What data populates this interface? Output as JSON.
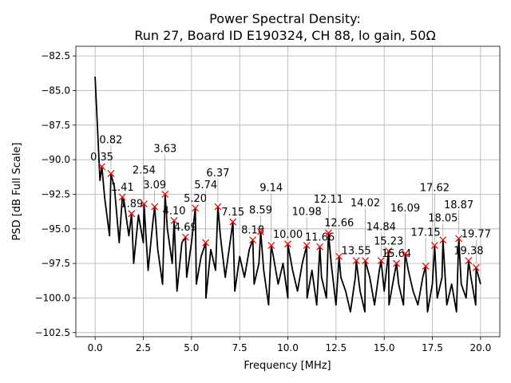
{
  "chart_data": {
    "type": "line",
    "title": "Power Spectral Density:",
    "subtitle": "Run 27, Board ID E190324, CH 88, lo gain, 50Ω",
    "xlabel": "Frequency [MHz]",
    "ylabel": "PSD [dB Full Scale]",
    "xlim": [
      -1,
      21
    ],
    "ylim": [
      -102.8,
      -81.8
    ],
    "xticks": [
      0.0,
      2.5,
      5.0,
      7.5,
      10.0,
      12.5,
      15.0,
      17.5,
      20.0
    ],
    "xtick_labels": [
      "0.0",
      "2.5",
      "5.0",
      "7.5",
      "10.0",
      "12.5",
      "15.0",
      "17.5",
      "20.0"
    ],
    "yticks": [
      -82.5,
      -85.0,
      -87.5,
      -90.0,
      -92.5,
      -95.0,
      -97.5,
      -100.0,
      -102.5
    ],
    "ytick_labels": [
      "−82.5",
      "−85.0",
      "−87.5",
      "−90.0",
      "−92.5",
      "−95.0",
      "−97.5",
      "−100.0",
      "−102.5"
    ],
    "grid": true,
    "line_color": "#000000",
    "marker_color": "#ff0000",
    "trace": {
      "x": [
        0,
        0.25,
        0.5,
        0.75,
        1.0,
        1.25,
        1.5,
        1.75,
        2.0,
        2.25,
        2.5,
        2.75,
        3.0,
        3.25,
        3.5,
        3.75,
        4.0,
        4.25,
        4.5,
        4.75,
        5.0,
        5.25,
        5.5,
        5.75,
        6.0,
        6.25,
        6.5,
        6.75,
        7.0,
        7.25,
        7.5,
        7.75,
        8.0,
        8.25,
        8.5,
        8.75,
        9.0,
        9.25,
        9.5,
        9.75,
        10.0,
        10.25,
        10.5,
        10.75,
        11.0,
        11.25,
        11.5,
        11.75,
        12.0,
        12.25,
        12.5,
        12.75,
        13.0,
        13.25,
        13.5,
        13.75,
        14.0,
        14.25,
        14.5,
        14.75,
        15.0,
        15.25,
        15.5,
        15.75,
        16.0,
        16.25,
        16.5,
        16.75,
        17.0,
        17.25,
        17.5,
        17.75,
        18.0,
        18.25,
        18.5,
        18.75,
        19.0,
        19.25,
        19.5,
        19.75,
        20.0
      ],
      "y": [
        -84.0,
        -91.5,
        -92.8,
        -95.5,
        -92.0,
        -96.0,
        -93.0,
        -95.5,
        -97.5,
        -94.0,
        -96.0,
        -98.0,
        -94.5,
        -96.5,
        -99.0,
        -95.0,
        -97.5,
        -99.5,
        -96.0,
        -98.5,
        -96.0,
        -99.0,
        -97.0,
        -100.0,
        -96.5,
        -98.0,
        -95.5,
        -98.5,
        -96.0,
        -99.5,
        -97.0,
        -98.5,
        -96.5,
        -99.0,
        -97.5,
        -98.0,
        -100.5,
        -97.0,
        -99.0,
        -97.5,
        -100.0,
        -98.0,
        -99.5,
        -97.5,
        -100.0,
        -98.0,
        -100.5,
        -98.5,
        -100.0,
        -97.5,
        -100.5,
        -98.5,
        -99.5,
        -101.0,
        -98.5,
        -99.5,
        -101.0,
        -98.5,
        -100.5,
        -98.0,
        -99.5,
        -100.5,
        -98.5,
        -99.0,
        -100.5,
        -98.0,
        -99.5,
        -100.5,
        -98.5,
        -101.0,
        -99.0,
        -100.0,
        -98.5,
        -100.5,
        -99.0,
        -101.0,
        -99.0,
        -100.0,
        -98.5,
        -100.5,
        -99.0
      ]
    },
    "peaks": [
      {
        "label": "0.35",
        "x": 0.35,
        "y": -90.5
      },
      {
        "label": "0.82",
        "x": 0.82,
        "y": -91.0
      },
      {
        "label": "1.41",
        "x": 1.41,
        "y": -92.7
      },
      {
        "label": "1.89",
        "x": 1.89,
        "y": -93.9
      },
      {
        "label": "2.54",
        "x": 2.54,
        "y": -93.2
      },
      {
        "label": "3.09",
        "x": 3.09,
        "y": -93.4
      },
      {
        "label": "3.63",
        "x": 3.63,
        "y": -92.5
      },
      {
        "label": "4.10",
        "x": 4.1,
        "y": -94.4
      },
      {
        "label": "4.69",
        "x": 4.69,
        "y": -95.6
      },
      {
        "label": "5.20",
        "x": 5.2,
        "y": -93.5
      },
      {
        "label": "5.74",
        "x": 5.74,
        "y": -96.0
      },
      {
        "label": "6.37",
        "x": 6.37,
        "y": -93.4
      },
      {
        "label": "7.15",
        "x": 7.15,
        "y": -94.5
      },
      {
        "label": "8.18",
        "x": 8.18,
        "y": -95.8
      },
      {
        "label": "8.59",
        "x": 8.59,
        "y": -95.2
      },
      {
        "label": "9.14",
        "x": 9.14,
        "y": -96.2
      },
      {
        "label": "10.00",
        "x": 10.0,
        "y": -96.1
      },
      {
        "label": "10.98",
        "x": 10.98,
        "y": -96.2
      },
      {
        "label": "11.66",
        "x": 11.66,
        "y": -96.3
      },
      {
        "label": "12.11",
        "x": 12.11,
        "y": -95.3
      },
      {
        "label": "12.66",
        "x": 12.66,
        "y": -97.0
      },
      {
        "label": "13.55",
        "x": 13.55,
        "y": -97.3
      },
      {
        "label": "14.02",
        "x": 14.02,
        "y": -97.3
      },
      {
        "label": "14.84",
        "x": 14.84,
        "y": -97.3
      },
      {
        "label": "15.23",
        "x": 15.23,
        "y": -96.6
      },
      {
        "label": "15.64",
        "x": 15.64,
        "y": -97.5
      },
      {
        "label": "16.09",
        "x": 16.09,
        "y": -96.8
      },
      {
        "label": "17.15",
        "x": 17.15,
        "y": -97.7
      },
      {
        "label": "17.62",
        "x": 17.62,
        "y": -96.2
      },
      {
        "label": "18.05",
        "x": 18.05,
        "y": -95.8
      },
      {
        "label": "18.87",
        "x": 18.87,
        "y": -95.7
      },
      {
        "label": "19.38",
        "x": 19.38,
        "y": -97.3
      },
      {
        "label": "19.77",
        "x": 19.77,
        "y": -97.8
      }
    ]
  }
}
